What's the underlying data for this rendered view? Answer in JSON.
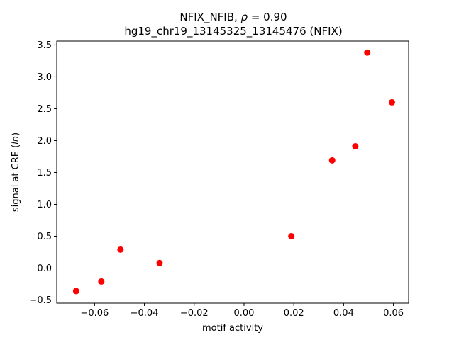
{
  "chart_data": {
    "type": "scatter",
    "title_prefix": "NFIX_NFIB, ",
    "title_rho_symbol": "ρ",
    "title_rho_value": " = 0.90",
    "subtitle": "hg19_chr19_13145325_13145476 (NFIX)",
    "xlabel": "motif activity",
    "ylabel_prefix": "signal at CRE (",
    "ylabel_italic": "ln",
    "ylabel_suffix": ")",
    "xlim": [
      -0.0752,
      0.0661
    ],
    "ylim": [
      -0.55,
      3.56
    ],
    "x_ticks": [
      -0.06,
      -0.04,
      -0.02,
      0.0,
      0.02,
      0.04,
      0.06
    ],
    "x_tick_labels": [
      "−0.06",
      "−0.04",
      "−0.02",
      "0.00",
      "0.02",
      "0.04",
      "0.06"
    ],
    "y_ticks": [
      -0.5,
      0.0,
      0.5,
      1.0,
      1.5,
      2.0,
      2.5,
      3.0,
      3.5
    ],
    "y_tick_labels": [
      "−0.5",
      "0.0",
      "0.5",
      "1.0",
      "1.5",
      "2.0",
      "2.5",
      "3.0",
      "3.5"
    ],
    "point_color": "#ff0000",
    "grid": false,
    "legend": "none",
    "points": [
      {
        "x": -0.0674,
        "y": -0.36
      },
      {
        "x": -0.0573,
        "y": -0.21
      },
      {
        "x": -0.0496,
        "y": 0.29
      },
      {
        "x": -0.0339,
        "y": 0.08
      },
      {
        "x": 0.019,
        "y": 0.5
      },
      {
        "x": 0.0354,
        "y": 1.69
      },
      {
        "x": 0.0447,
        "y": 1.91
      },
      {
        "x": 0.0495,
        "y": 3.38
      },
      {
        "x": 0.0594,
        "y": 2.6
      }
    ]
  }
}
